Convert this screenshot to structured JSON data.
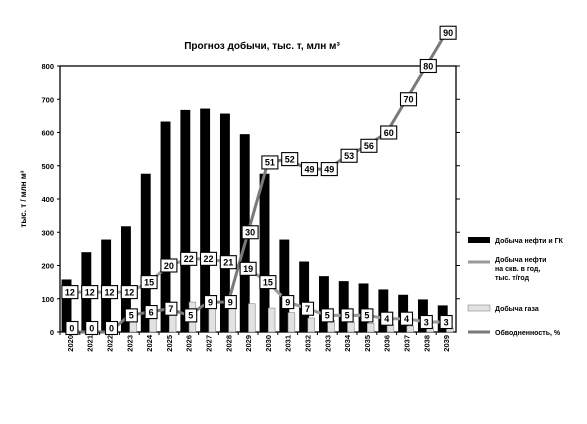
{
  "chart_data": {
    "type": "bar",
    "title": "Прогноз добычи, тыс. т, млн м³",
    "ylabel": "тыс. т / млн м³",
    "xlabel": "",
    "ylim": [
      0,
      800
    ],
    "yticks": [
      0,
      100,
      200,
      300,
      400,
      500,
      600,
      700,
      800
    ],
    "grid": false,
    "legend_position": "right",
    "categories": [
      "2020",
      "2021",
      "2022",
      "2023",
      "2024",
      "2025",
      "2026",
      "2027",
      "2028",
      "2029",
      "2030",
      "2031",
      "2032",
      "2033",
      "2034",
      "2035",
      "2036",
      "2037",
      "2038",
      "2039"
    ],
    "series": [
      {
        "name": "Добыча нефти и ГК",
        "kind": "bar",
        "color": "#000000",
        "values": [
          158,
          240,
          278,
          318,
          476,
          633,
          668,
          672,
          657,
          595,
          476,
          278,
          212,
          168,
          153,
          146,
          128,
          112,
          98,
          80
        ]
      },
      {
        "name": "Добыча газа",
        "kind": "bar",
        "color": "#e2e2e2",
        "values": [
          0,
          0,
          0,
          35,
          75,
          88,
          90,
          88,
          88,
          85,
          72,
          58,
          42,
          35,
          30,
          26,
          22,
          18,
          15,
          12
        ]
      },
      {
        "name": "Добыча нефти на скв. в год, тыс. т/год",
        "kind": "line",
        "color": "#9a9a9a",
        "values": [
          12,
          12,
          12,
          12,
          15,
          20,
          22,
          22,
          21,
          19,
          15,
          9,
          7,
          5,
          5,
          5,
          4,
          4,
          3,
          3
        ]
      },
      {
        "name": "Обводненность, %",
        "kind": "line",
        "color": "#7a7a7a",
        "values": [
          0,
          0,
          0,
          5,
          6,
          7,
          5,
          9,
          9,
          30,
          51,
          52,
          49,
          49,
          53,
          56,
          60,
          70,
          80,
          90
        ]
      }
    ]
  }
}
